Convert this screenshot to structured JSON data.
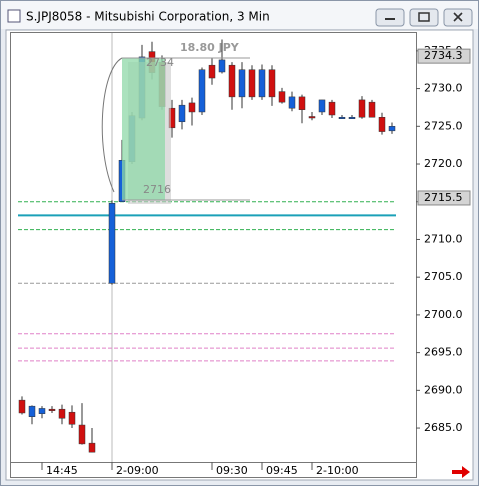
{
  "window_title": "S.JPJ8058 - Mitsubishi Corporation, 3 Min",
  "chart_data": {
    "type": "candlestick",
    "categories": [
      null,
      null,
      "14:45",
      null,
      null,
      null,
      null,
      null,
      null,
      "2-09:00",
      null,
      null,
      null,
      null,
      null,
      null,
      null,
      null,
      null,
      "09:30",
      null,
      null,
      null,
      null,
      "09:45",
      null,
      null,
      null,
      null,
      "2-10:00",
      null,
      null,
      null,
      null,
      null,
      null,
      null,
      null
    ],
    "open": [
      2688.7,
      2686.5,
      2686.9,
      2687.5,
      2687.5,
      2687.1,
      2685.4,
      2683.0,
      null,
      2704.2,
      2715.0,
      2720.3,
      2726.1,
      2734.9,
      2733.5,
      2727.4,
      2725.6,
      2728.1,
      2726.9,
      2733.1,
      2732.2,
      2733.1,
      2728.9,
      2732.5,
      2728.9,
      2732.5,
      2729.6,
      2727.4,
      2728.9,
      2726.3,
      2726.9,
      2728.2,
      2726.2,
      2726.2,
      2728.5,
      2728.2,
      2726.2,
      2724.4
    ],
    "high": [
      2689.2,
      2688.0,
      2687.9,
      2687.9,
      2688.1,
      2688.0,
      2688.3,
      2685.0,
      null,
      2715.2,
      2723.2,
      2726.9,
      2735.8,
      2736.2,
      2734.4,
      2728.5,
      2728.5,
      2728.8,
      2732.8,
      2734.1,
      2736.5,
      2733.5,
      2733.5,
      2733.1,
      2733.2,
      2733.1,
      2730.1,
      2729.6,
      2729.2,
      2726.9,
      2728.5,
      2728.5,
      2726.5,
      2726.5,
      2729.0,
      2728.5,
      2726.8,
      2725.5
    ],
    "low": [
      2686.8,
      2685.5,
      2686.3,
      2687.0,
      2685.5,
      2685.0,
      2682.8,
      2681.8,
      null,
      2704.0,
      2715.0,
      2720.0,
      2725.8,
      2731.2,
      2727.2,
      2723.5,
      2724.6,
      2725.1,
      2726.5,
      2730.5,
      2732.0,
      2727.2,
      2727.4,
      2728.5,
      2728.5,
      2727.7,
      2728.0,
      2727.0,
      2725.4,
      2725.8,
      2726.5,
      2726.1,
      2726.0,
      2726.0,
      2726.0,
      2726.2,
      2723.9,
      2724.0
    ],
    "close": [
      2687.0,
      2687.9,
      2687.6,
      2687.4,
      2686.3,
      2685.5,
      2682.9,
      2681.8,
      null,
      2714.8,
      2720.5,
      2726.4,
      2734.2,
      2732.1,
      2727.6,
      2724.8,
      2727.8,
      2726.9,
      2732.5,
      2731.4,
      2733.8,
      2728.9,
      2732.5,
      2728.9,
      2732.5,
      2728.9,
      2728.2,
      2728.9,
      2727.2,
      2726.2,
      2728.5,
      2726.5,
      2726.2,
      2726.2,
      2726.2,
      2726.2,
      2724.3,
      2725.0
    ],
    "up_color": "#1560d8",
    "down_color": "#d01010",
    "ylim": [
      2680.5,
      2737.5
    ],
    "yticks": [
      {
        "value": 2685,
        "label": "2685.0"
      },
      {
        "value": 2690,
        "label": "2690.0"
      },
      {
        "value": 2695,
        "label": "2695.0"
      },
      {
        "value": 2700,
        "label": "2700.0"
      },
      {
        "value": 2705,
        "label": "2705.0"
      },
      {
        "value": 2710,
        "label": "2710.0"
      },
      {
        "value": 2715,
        "label": "2715.0"
      },
      {
        "value": 2720,
        "label": "2720.0"
      },
      {
        "value": 2725,
        "label": "2725.0"
      },
      {
        "value": 2730,
        "label": "2730.0"
      },
      {
        "value": 2735,
        "label": "2735.0"
      }
    ],
    "price_labels": [
      {
        "value": 2734.3,
        "label": "2734.3"
      },
      {
        "value": 2715.5,
        "label": "2715.5"
      }
    ],
    "levels": [
      {
        "value": 2715.0,
        "color": "#30b050",
        "dashed": true
      },
      {
        "value": 2713.2,
        "color": "#1aa0b8",
        "dashed": false
      },
      {
        "value": 2711.3,
        "color": "#30b050",
        "dashed": true
      },
      {
        "value": 2704.2,
        "color": "#999999",
        "dashed": true
      },
      {
        "value": 2697.5,
        "color": "#e080c8",
        "dashed": true
      },
      {
        "value": 2695.6,
        "color": "#e080c8",
        "dashed": true
      },
      {
        "value": 2693.9,
        "color": "#e080c8",
        "dashed": true
      }
    ],
    "annotations": [
      "18.80 JPY",
      "2734",
      "2716"
    ]
  }
}
